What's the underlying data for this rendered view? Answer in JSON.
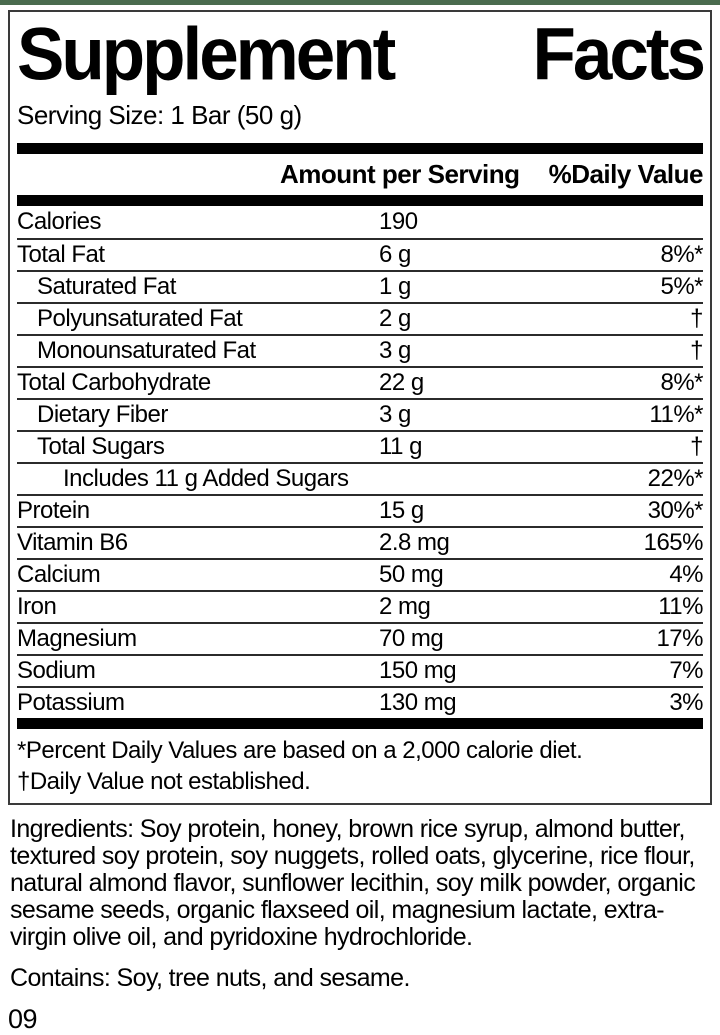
{
  "colors": {
    "top_strip_green": "#4a6b4e",
    "bar_black": "#000000",
    "text": "#000000"
  },
  "label": {
    "title_word1": "Supplement",
    "title_word2": "Facts",
    "serving_size": "Serving Size: 1 Bar (50 g)",
    "columns": {
      "amount_header": "Amount per Serving",
      "dv_header": "%Daily Value"
    },
    "rows": [
      {
        "name": "Calories",
        "amount": "190",
        "dv": "",
        "indent": 0
      },
      {
        "name": "Total Fat",
        "amount": "6 g",
        "dv": "8%*",
        "indent": 0
      },
      {
        "name": "Saturated Fat",
        "amount": "1 g",
        "dv": "5%*",
        "indent": 1
      },
      {
        "name": "Polyunsaturated Fat",
        "amount": "2 g",
        "dv": "†",
        "indent": 1
      },
      {
        "name": "Monounsaturated Fat",
        "amount": "3 g",
        "dv": "†",
        "indent": 1
      },
      {
        "name": "Total Carbohydrate",
        "amount": "22 g",
        "dv": "8%*",
        "indent": 0
      },
      {
        "name": "Dietary Fiber",
        "amount": "3 g",
        "dv": "11%*",
        "indent": 1
      },
      {
        "name": "Total Sugars",
        "amount": "11 g",
        "dv": "†",
        "indent": 1
      },
      {
        "name": "Includes 11 g Added Sugars",
        "amount": "",
        "dv": "22%*",
        "indent": 2
      },
      {
        "name": "Protein",
        "amount": "15 g",
        "dv": "30%*",
        "indent": 0
      },
      {
        "name": "Vitamin B6",
        "amount": "2.8 mg",
        "dv": "165%",
        "indent": 0
      },
      {
        "name": "Calcium",
        "amount": "50 mg",
        "dv": "4%",
        "indent": 0
      },
      {
        "name": "Iron",
        "amount": "2 mg",
        "dv": "11%",
        "indent": 0
      },
      {
        "name": "Magnesium",
        "amount": "70 mg",
        "dv": "17%",
        "indent": 0
      },
      {
        "name": "Sodium",
        "amount": "150 mg",
        "dv": "7%",
        "indent": 0
      },
      {
        "name": "Potassium",
        "amount": "130 mg",
        "dv": "3%",
        "indent": 0
      }
    ],
    "footnotes": [
      "*Percent Daily Values are based on a 2,000 calorie diet.",
      "†Daily Value not established."
    ]
  },
  "ingredients_text": "Ingredients: Soy protein, honey, brown rice syrup, almond butter, textured soy protein, soy nuggets, rolled oats, glycerine, rice flour, natural almond flavor, sunflower lecithin, soy milk powder, organic sesame seeds, organic flaxseed oil, magnesium lactate, extra-virgin olive oil, and pyridoxine hydrochloride.",
  "contains_text": "Contains: Soy, tree nuts, and sesame.",
  "footer_code": "09"
}
